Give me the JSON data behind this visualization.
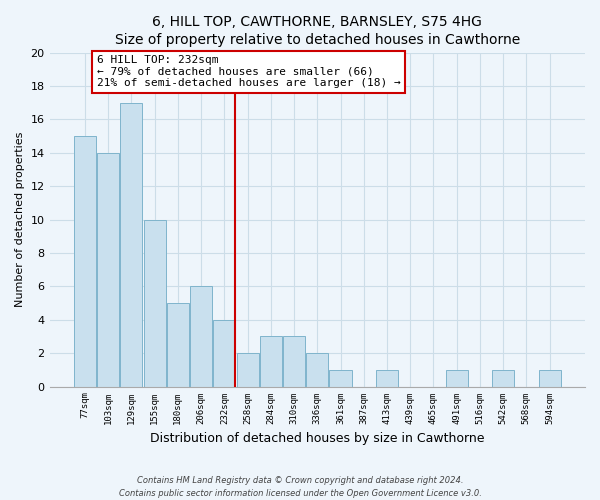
{
  "title": "6, HILL TOP, CAWTHORNE, BARNSLEY, S75 4HG",
  "subtitle": "Size of property relative to detached houses in Cawthorne",
  "xlabel": "Distribution of detached houses by size in Cawthorne",
  "ylabel": "Number of detached properties",
  "bar_labels": [
    "77sqm",
    "103sqm",
    "129sqm",
    "155sqm",
    "180sqm",
    "206sqm",
    "232sqm",
    "258sqm",
    "284sqm",
    "310sqm",
    "336sqm",
    "361sqm",
    "387sqm",
    "413sqm",
    "439sqm",
    "465sqm",
    "491sqm",
    "516sqm",
    "542sqm",
    "568sqm",
    "594sqm"
  ],
  "bar_values": [
    15,
    14,
    17,
    10,
    5,
    6,
    4,
    2,
    3,
    3,
    2,
    1,
    0,
    1,
    0,
    0,
    1,
    0,
    1,
    0,
    1
  ],
  "bar_color": "#c9e0ee",
  "bar_edge_color": "#7fb4cc",
  "highlight_index": 6,
  "highlight_line_color": "#cc0000",
  "ylim": [
    0,
    20
  ],
  "yticks": [
    0,
    2,
    4,
    6,
    8,
    10,
    12,
    14,
    16,
    18,
    20
  ],
  "annotation_line1": "6 HILL TOP: 232sqm",
  "annotation_line2": "← 79% of detached houses are smaller (66)",
  "annotation_line3": "21% of semi-detached houses are larger (18) →",
  "annotation_box_color": "#ffffff",
  "annotation_box_edge_color": "#cc0000",
  "footer_line1": "Contains HM Land Registry data © Crown copyright and database right 2024.",
  "footer_line2": "Contains public sector information licensed under the Open Government Licence v3.0.",
  "grid_color": "#ccdde8",
  "background_color": "#eef5fb",
  "title_fontsize": 10,
  "subtitle_fontsize": 9,
  "ylabel_fontsize": 8,
  "xlabel_fontsize": 9
}
